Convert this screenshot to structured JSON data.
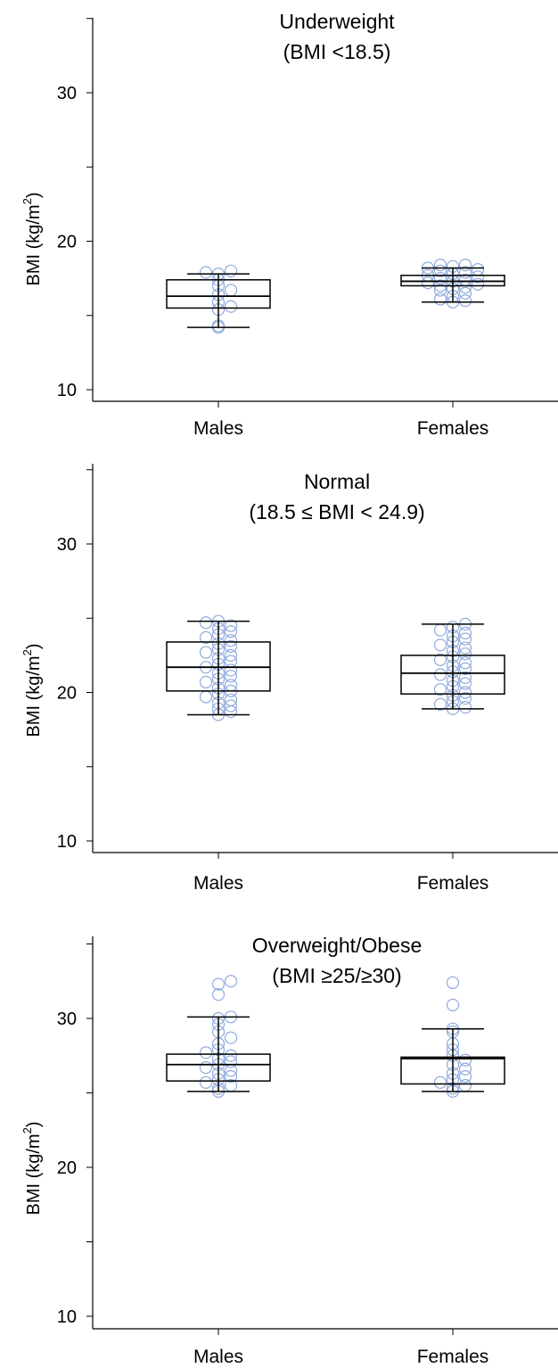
{
  "chart_data": [
    {
      "type": "box",
      "title": "Underweight",
      "subtitle": "(BMI <18.5)",
      "ylabel": "BMI (kg/m",
      "ylabel_sup": "2",
      "ylabel_close": ")",
      "ylim": [
        10,
        36
      ],
      "yticks": [
        10,
        20,
        30
      ],
      "categories": [
        "Males",
        "Females"
      ],
      "point_color": "#8faadc",
      "series": [
        {
          "category": "Males",
          "q1": 15.5,
          "median": 16.3,
          "q3": 17.4,
          "whisker_low": 14.2,
          "whisker_high": 17.8,
          "points": [
            14.2,
            14.3,
            15.4,
            15.6,
            15.9,
            16.4,
            16.7,
            17.0,
            17.4,
            17.8,
            18.0,
            17.9
          ]
        },
        {
          "category": "Females",
          "q1": 17.0,
          "median": 17.3,
          "q3": 17.7,
          "whisker_low": 15.9,
          "whisker_high": 18.2,
          "points": [
            15.9,
            16.0,
            16.1,
            16.3,
            16.5,
            16.7,
            16.8,
            16.9,
            17.0,
            17.1,
            17.2,
            17.3,
            17.4,
            17.5,
            17.6,
            17.7,
            17.8,
            17.9,
            18.0,
            18.1,
            18.2,
            18.3,
            18.4,
            18.4
          ]
        }
      ]
    },
    {
      "type": "box",
      "title": "Normal",
      "subtitle": "(18.5 ≤ BMI < 24.9)",
      "ylabel": "BMI (kg/m",
      "ylabel_sup": "2",
      "ylabel_close": ")",
      "ylim": [
        10,
        36
      ],
      "yticks": [
        10,
        20,
        30
      ],
      "categories": [
        "Males",
        "Females"
      ],
      "point_color": "#8faadc",
      "series": [
        {
          "category": "Males",
          "q1": 20.1,
          "median": 21.7,
          "q3": 23.4,
          "whisker_low": 18.5,
          "whisker_high": 24.8,
          "points": [
            18.5,
            18.7,
            18.9,
            19.1,
            19.3,
            19.5,
            19.7,
            19.9,
            20.1,
            20.3,
            20.5,
            20.7,
            20.9,
            21.1,
            21.3,
            21.5,
            21.7,
            21.9,
            22.1,
            22.3,
            22.5,
            22.7,
            22.9,
            23.1,
            23.3,
            23.5,
            23.7,
            23.9,
            24.1,
            24.3,
            24.5,
            24.7,
            24.8
          ]
        },
        {
          "category": "Females",
          "q1": 19.9,
          "median": 21.3,
          "q3": 22.5,
          "whisker_low": 18.9,
          "whisker_high": 24.6,
          "points": [
            18.9,
            19.0,
            19.2,
            19.4,
            19.6,
            19.8,
            20.0,
            20.2,
            20.4,
            20.6,
            20.8,
            21.0,
            21.2,
            21.4,
            21.6,
            21.8,
            22.0,
            22.2,
            22.4,
            22.6,
            22.8,
            23.0,
            23.2,
            23.4,
            23.6,
            23.8,
            24.0,
            24.2,
            24.4,
            24.6
          ]
        }
      ]
    },
    {
      "type": "box",
      "title": "Overweight/Obese",
      "subtitle": "(BMI ≥25/≥30)",
      "ylabel": "BMI (kg/m",
      "ylabel_sup": "2",
      "ylabel_close": ")",
      "ylim": [
        10,
        36
      ],
      "yticks": [
        10,
        20,
        30
      ],
      "categories": [
        "Males",
        "Females"
      ],
      "point_color": "#8faadc",
      "series": [
        {
          "category": "Males",
          "q1": 25.8,
          "median": 26.9,
          "q3": 27.6,
          "whisker_low": 25.1,
          "whisker_high": 30.1,
          "points": [
            25.1,
            25.3,
            25.5,
            25.7,
            25.9,
            26.1,
            26.3,
            26.5,
            26.7,
            26.9,
            27.1,
            27.3,
            27.5,
            27.7,
            27.9,
            28.3,
            28.7,
            29.1,
            29.6,
            30.0,
            30.1,
            31.6,
            32.3,
            32.5
          ]
        },
        {
          "category": "Females",
          "q1": 25.6,
          "median": 27.3,
          "q3": 27.4,
          "whisker_low": 25.1,
          "whisker_high": 29.3,
          "points": [
            25.1,
            25.3,
            25.5,
            25.7,
            25.9,
            26.1,
            26.3,
            26.6,
            26.9,
            27.2,
            27.5,
            27.9,
            28.3,
            29.1,
            29.3,
            30.9,
            32.4
          ]
        }
      ]
    }
  ]
}
